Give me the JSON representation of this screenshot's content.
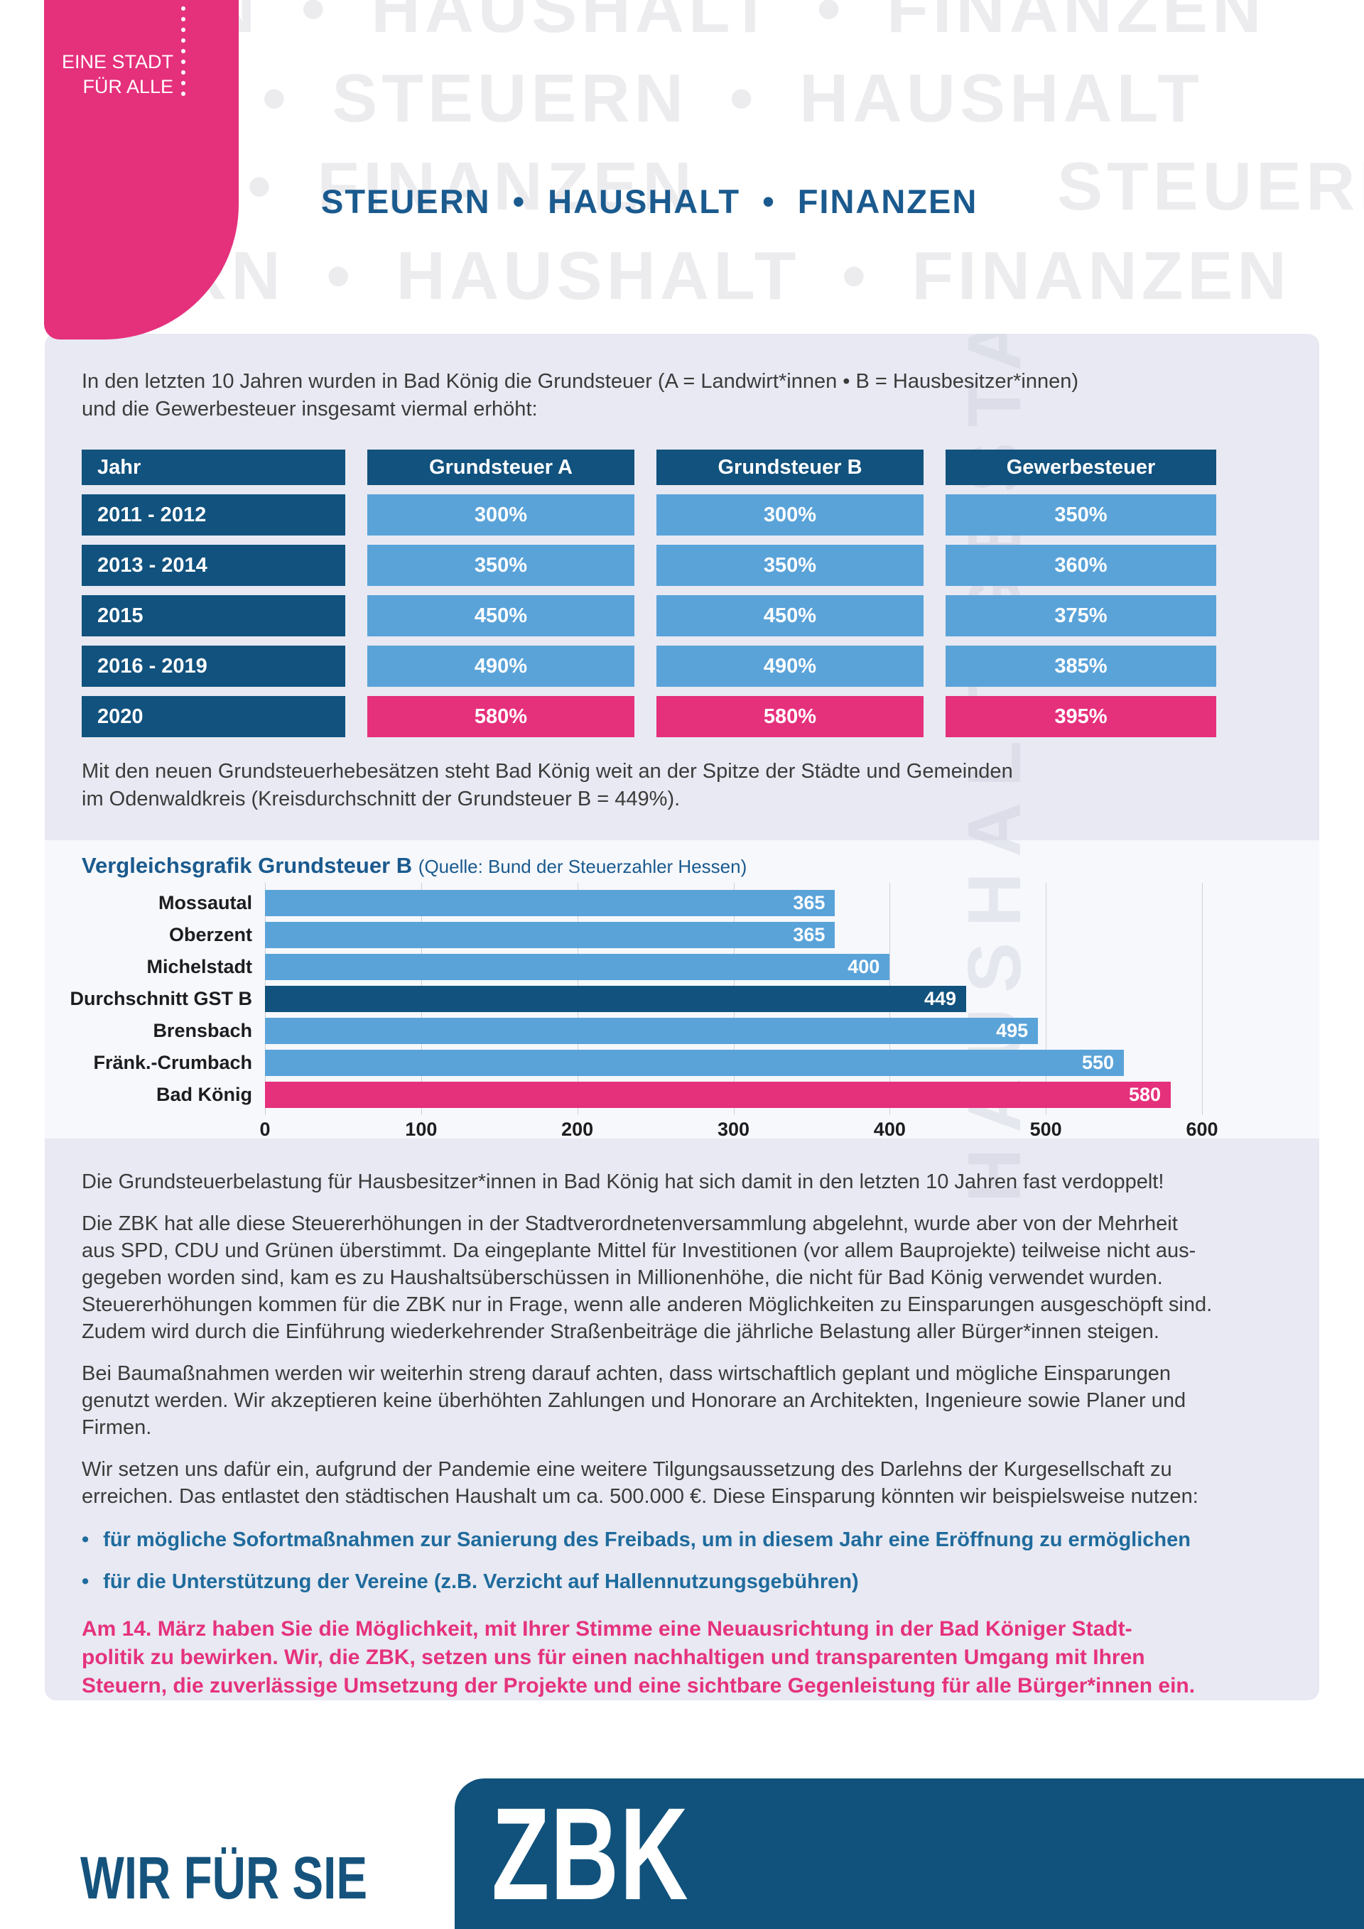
{
  "badge": {
    "slogan": "EINE STADT\nFÜR ALLE"
  },
  "header": {
    "title": "STEUERN • HAUSHALT • FINANZEN"
  },
  "watermarks": {
    "header_rows": [
      "N • HAUSHALT • FINANZEN",
      "EN • STEUERN • HAUSHALT",
      "ALT • FINANZEN",
      "STEUERN",
      "RN • HAUSHALT • FINANZEN"
    ],
    "vertical": "HAUSHALT GESTALTEN"
  },
  "intro": "In den letzten 10 Jahren wurden in Bad König die Grundsteuer (A = Landwirt*innen • B = Hausbesitzer*innen)\nund die Gewerbesteuer insgesamt viermal erhöht:",
  "table": {
    "columns": [
      "Jahr",
      "Grundsteuer A",
      "Grundsteuer B",
      "Gewerbesteuer"
    ],
    "rows": [
      {
        "year": "2011 - 2012",
        "values": [
          "300%",
          "300%",
          "350%"
        ],
        "highlight": false
      },
      {
        "year": "2013 - 2014",
        "values": [
          "350%",
          "350%",
          "360%"
        ],
        "highlight": false
      },
      {
        "year": "2015",
        "values": [
          "450%",
          "450%",
          "375%"
        ],
        "highlight": false
      },
      {
        "year": "2016 - 2019",
        "values": [
          "490%",
          "490%",
          "385%"
        ],
        "highlight": false
      },
      {
        "year": "2020",
        "values": [
          "580%",
          "580%",
          "395%"
        ],
        "highlight": true
      }
    ]
  },
  "after_table": "Mit den neuen Grundsteuerhebesätzen steht Bad König weit an der Spitze der Städte und Gemeinden\nim Odenwaldkreis (Kreisdurchschnitt der Grundsteuer B = 449%).",
  "chart_data": {
    "type": "bar",
    "orientation": "horizontal",
    "title": "Vergleichsgrafik Grundsteuer B",
    "subtitle": "(Quelle: Bund der Steuerzahler Hessen)",
    "categories": [
      "Mossautal",
      "Oberzent",
      "Michelstadt",
      "Durchschnitt GST B",
      "Brensbach",
      "Fränk.-Crumbach",
      "Bad König"
    ],
    "values": [
      365,
      365,
      400,
      449,
      495,
      550,
      580
    ],
    "xlim": [
      0,
      600
    ],
    "xticks": [
      0,
      100,
      200,
      300,
      400,
      500,
      600
    ],
    "grid": true,
    "highlight_dark": "Durchschnitt GST B",
    "highlight_pink": "Bad König"
  },
  "body": {
    "paragraphs": [
      "Die Grundsteuerbelastung für Hausbesitzer*innen in Bad König hat sich damit in den letzten 10 Jahren fast verdoppelt!",
      "Die ZBK hat alle diese Steuererhöhungen in der Stadtverordnetenversammlung abgelehnt, wurde aber von der Mehrheit\naus SPD, CDU und Grünen überstimmt. Da eingeplante Mittel für Investitionen (vor allem Bauprojekte) teilweise nicht aus-\ngegeben worden sind, kam es zu Haushaltsüberschüssen in Millionenhöhe, die nicht für Bad König verwendet wurden.\nSteuererhöhungen kommen für die ZBK nur in Frage, wenn alle anderen Möglichkeiten zu Einsparungen ausgeschöpft sind.\nZudem wird durch die Einführung wiederkehrender Straßenbeiträge die jährliche Belastung aller Bürger*innen steigen.",
      "Bei Baumaßnahmen werden wir weiterhin streng darauf achten, dass wirtschaftlich geplant und mögliche Einsparungen\ngenutzt werden. Wir akzeptieren keine überhöhten Zahlungen und Honorare an Architekten, Ingenieure sowie Planer und\nFirmen.",
      "Wir setzen uns dafür ein, aufgrund der Pandemie eine weitere Tilgungsaussetzung des Darlehns der Kurgesellschaft zu\nerreichen. Das entlastet den städtischen Haushalt um ca. 500.000 €. Diese Einsparung könnten wir beispielsweise nutzen:"
    ],
    "bullet_marker": "•",
    "bullets": [
      "für mögliche Sofortmaßnahmen zur Sanierung des Freibads, um in diesem Jahr eine Eröffnung zu ermöglichen",
      "für die Unterstützung der Vereine (z.B. Verzicht auf Hallennutzungsgebühren)"
    ],
    "cta": "Am 14. März haben Sie die Möglichkeit, mit Ihrer Stimme eine Neuausrichtung in der Bad Königer Stadt-\npolitik zu bewirken. Wir, die ZBK, setzen uns für einen nachhaltigen und transparenten Umgang mit Ihren\nSteuern, die zuverlässige Umsetzung der Projekte und eine sichtbare Gegenleistung für alle Bürger*innen ein."
  },
  "footer": {
    "slogan": "WIR FÜR SIE",
    "logo": "ZBK"
  },
  "colors": {
    "pink": "#e5307c",
    "dark_blue": "#11527e",
    "light_blue": "#5aa3d9",
    "title_blue": "#1a5a8e",
    "panel_lavender": "#e8e9f2",
    "chart_band": "#f7f8fc"
  }
}
